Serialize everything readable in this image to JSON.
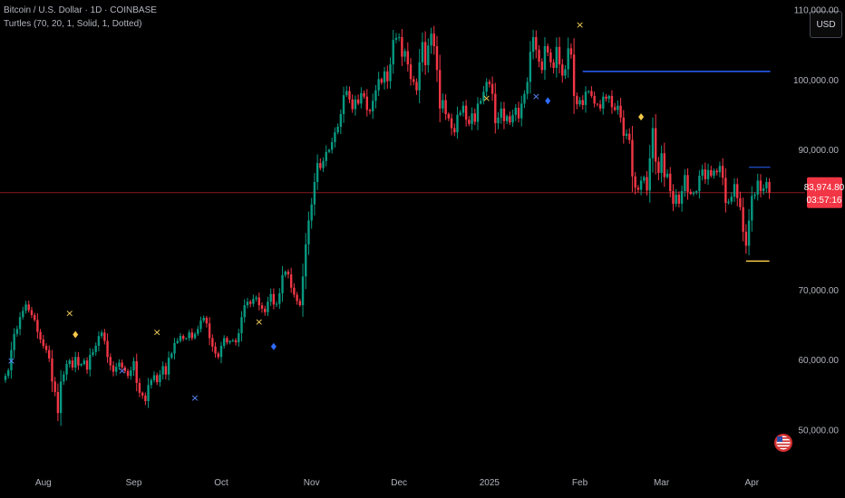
{
  "header": {
    "symbol": "Bitcoin / U.S. Dollar · 1D · COINBASE",
    "indicator": "Turtles (70, 20, 1, Solid, 1, Dotted)"
  },
  "currency_button": "USD",
  "price_tag": {
    "price": "83,974.80",
    "countdown": "03:57:16",
    "color": "#f23645"
  },
  "colors": {
    "up": "#089981",
    "down": "#f23645",
    "entry_line": "#2962ff",
    "exit_line": "#f7c948",
    "current_line": "#8a1c22"
  },
  "chart_data": {
    "type": "candlestick",
    "title": "",
    "ylim": [
      44500,
      111500
    ],
    "y_ticks": [
      {
        "value": 110000,
        "label": "110,000.00"
      },
      {
        "value": 100000,
        "label": "100,000.00"
      },
      {
        "value": 90000,
        "label": "90,000.00"
      },
      {
        "value": 70000,
        "label": "70,000.00"
      },
      {
        "value": 60000,
        "label": "60,000.00"
      },
      {
        "value": 50000,
        "label": "50,000.00"
      }
    ],
    "x_ticks": [
      {
        "index": 13,
        "label": "Aug"
      },
      {
        "index": 44,
        "label": "Sep"
      },
      {
        "index": 74,
        "label": "Oct"
      },
      {
        "index": 105,
        "label": "Nov"
      },
      {
        "index": 135,
        "label": "Dec"
      },
      {
        "index": 166,
        "label": "2025"
      },
      {
        "index": 197,
        "label": "Feb"
      },
      {
        "index": 225,
        "label": "Mar"
      },
      {
        "index": 256,
        "label": "Apr"
      }
    ],
    "current_price": 83974.8,
    "closes": [
      57800,
      58600,
      61500,
      63800,
      64500,
      66200,
      67100,
      68000,
      67200,
      66500,
      65800,
      64100,
      63000,
      62100,
      61500,
      60300,
      57000,
      55500,
      52500,
      57000,
      58000,
      59500,
      60000,
      59000,
      60500,
      59300,
      59500,
      60000,
      58700,
      60800,
      61200,
      62100,
      63500,
      64000,
      62800,
      60500,
      59300,
      58400,
      59100,
      59700,
      59000,
      58500,
      57800,
      58600,
      59900,
      56800,
      55400,
      55000,
      54200,
      56500,
      57200,
      57900,
      56900,
      58000,
      59200,
      58000,
      60400,
      61000,
      62500,
      62800,
      63500,
      63100,
      63200,
      64000,
      63200,
      63800,
      64500,
      65700,
      66100,
      65300,
      63200,
      62000,
      61000,
      60500,
      62100,
      63200,
      62600,
      62800,
      62900,
      62600,
      63900,
      66200,
      67900,
      68400,
      68100,
      68800,
      69000,
      67900,
      67400,
      66900,
      68400,
      69500,
      68000,
      68100,
      69600,
      72200,
      72700,
      72300,
      70400,
      69400,
      68500,
      67900,
      72000,
      76600,
      80000,
      82300,
      85500,
      88200,
      87500,
      88500,
      89800,
      90100,
      91200,
      92600,
      93400,
      95200,
      97900,
      98500,
      97300,
      95900,
      97300,
      96700,
      98200,
      97700,
      95800,
      95600,
      97100,
      98600,
      100200,
      99700,
      101300,
      99900,
      102300,
      105800,
      106100,
      106200,
      103400,
      104200,
      102300,
      100200,
      99800,
      98600,
      102600,
      105500,
      102200,
      105000,
      106700,
      104900,
      101500,
      96000,
      97200,
      95200,
      94600,
      93200,
      92600,
      95100,
      95400,
      96400,
      94400,
      93800,
      95300,
      94100,
      96700,
      97100,
      98400,
      99800,
      99500,
      98100,
      93900,
      94700,
      96000,
      94200,
      94900,
      94000,
      95100,
      96100,
      94600,
      96700,
      98100,
      99800,
      104100,
      106200,
      104400,
      102700,
      101500,
      104900,
      104000,
      102600,
      101800,
      104800,
      102300,
      100700,
      101600,
      104600,
      103700,
      97800,
      96600,
      97200,
      96500,
      98400,
      98500,
      97800,
      96700,
      96600,
      96000,
      97700,
      97400,
      97800,
      96200,
      95800,
      96400,
      94700,
      92100,
      92400,
      91500,
      86300,
      84700,
      84400,
      85700,
      86200,
      84300,
      88900,
      93200,
      88400,
      86800,
      89600,
      86200,
      86700,
      84200,
      82400,
      83700,
      82400,
      84200,
      86500,
      84100,
      83800,
      84000,
      84200,
      86400,
      87300,
      85900,
      87200,
      86400,
      87100,
      86900,
      87800,
      86100,
      82500,
      82700,
      83400,
      85200,
      83200,
      81900,
      78400,
      76400,
      80000,
      83500,
      83700,
      85700,
      84200,
      84600,
      85500,
      84000
    ]
  },
  "annotations": {
    "entry_line_high": 101300,
    "entry_line_high_start": 198,
    "entry_line_low": 87600,
    "entry_line_low_start": 255,
    "exit_line": 74200,
    "exit_line_start": 254,
    "exit_line_end": 262,
    "x_marks_blue": [
      {
        "index": 2,
        "price": 60000
      },
      {
        "index": 40,
        "price": 58600
      },
      {
        "index": 65,
        "price": 54700
      },
      {
        "index": 182,
        "price": 97800
      }
    ],
    "x_marks_yellow": [
      {
        "index": 22,
        "price": 66800
      },
      {
        "index": 52,
        "price": 64100
      },
      {
        "index": 87,
        "price": 65600
      },
      {
        "index": 165,
        "price": 97500
      },
      {
        "index": 197,
        "price": 108000
      }
    ],
    "diamonds_blue": [
      {
        "index": 92,
        "price": 62000
      },
      {
        "index": 186,
        "price": 97100
      }
    ],
    "diamonds_yellow": [
      {
        "index": 24,
        "price": 63700
      },
      {
        "index": 218,
        "price": 94800
      }
    ]
  },
  "flag_icon": "us-flag-icon"
}
